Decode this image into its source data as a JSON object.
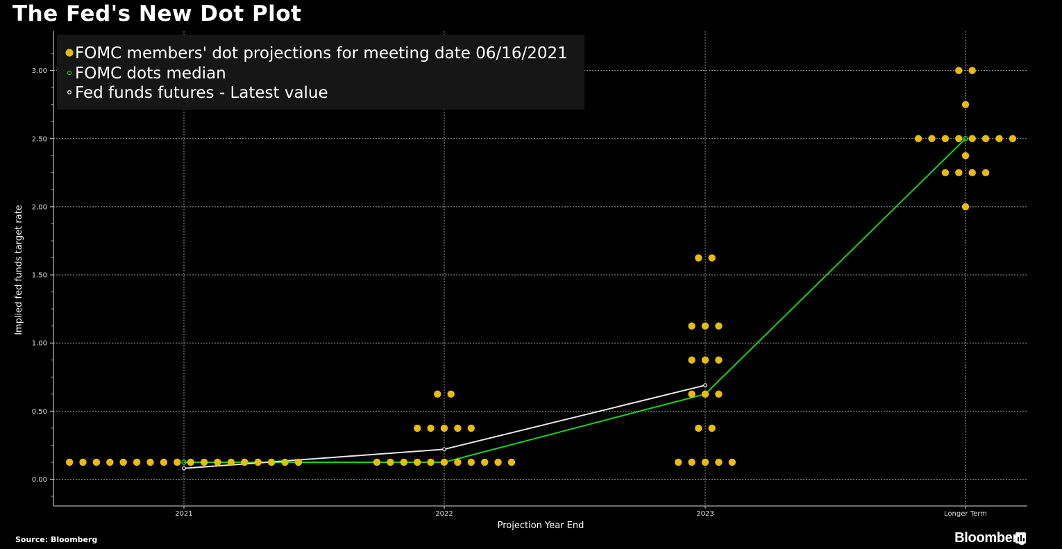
{
  "title": "The Fed's New Dot Plot",
  "source": "Source: Bloomberg",
  "brand": "Bloomberg",
  "colors": {
    "background": "#000000",
    "dots": "#e8bb10",
    "median": "#1bd11b",
    "futures": "#e8e8e8",
    "grid": "#9a9a9a"
  },
  "chart_data": {
    "type": "scatter",
    "title": "The Fed's New Dot Plot",
    "xlabel": "Projection Year End",
    "ylabel": "Implied fed funds target rate",
    "categories": [
      "2021",
      "2022",
      "2023",
      "Longer Term"
    ],
    "ylim": [
      -0.2,
      3.25
    ],
    "yticks": [
      0.0,
      0.5,
      1.0,
      1.5,
      2.0,
      2.5,
      3.0
    ],
    "ytick_labels": [
      "0.00",
      "0.50",
      "1.00",
      "1.50",
      "2.00",
      "2.50",
      "3.00"
    ],
    "grid": true,
    "legend_position": "top-left",
    "legend": [
      "FOMC members' dot projections for meeting date 06/16/2021",
      "FOMC dots median",
      "Fed funds futures - Latest value"
    ],
    "dots": [
      {
        "category": "2021",
        "rate": 0.125,
        "count": 18
      },
      {
        "category": "2022",
        "rate": 0.625,
        "count": 2
      },
      {
        "category": "2022",
        "rate": 0.375,
        "count": 5
      },
      {
        "category": "2022",
        "rate": 0.125,
        "count": 11
      },
      {
        "category": "2023",
        "rate": 1.625,
        "count": 2
      },
      {
        "category": "2023",
        "rate": 1.125,
        "count": 3
      },
      {
        "category": "2023",
        "rate": 0.875,
        "count": 3
      },
      {
        "category": "2023",
        "rate": 0.625,
        "count": 3
      },
      {
        "category": "2023",
        "rate": 0.375,
        "count": 2
      },
      {
        "category": "2023",
        "rate": 0.125,
        "count": 5
      },
      {
        "category": "Longer Term",
        "rate": 3.0,
        "count": 2
      },
      {
        "category": "Longer Term",
        "rate": 2.75,
        "count": 1
      },
      {
        "category": "Longer Term",
        "rate": 2.5,
        "count": 8
      },
      {
        "category": "Longer Term",
        "rate": 2.375,
        "count": 1
      },
      {
        "category": "Longer Term",
        "rate": 2.25,
        "count": 4
      },
      {
        "category": "Longer Term",
        "rate": 2.0,
        "count": 1
      }
    ],
    "series": [
      {
        "name": "FOMC dots median",
        "values": [
          0.125,
          0.125,
          0.625,
          2.5
        ]
      },
      {
        "name": "Fed funds futures - Latest value",
        "values": [
          0.08,
          0.22,
          0.69,
          null
        ]
      }
    ]
  }
}
